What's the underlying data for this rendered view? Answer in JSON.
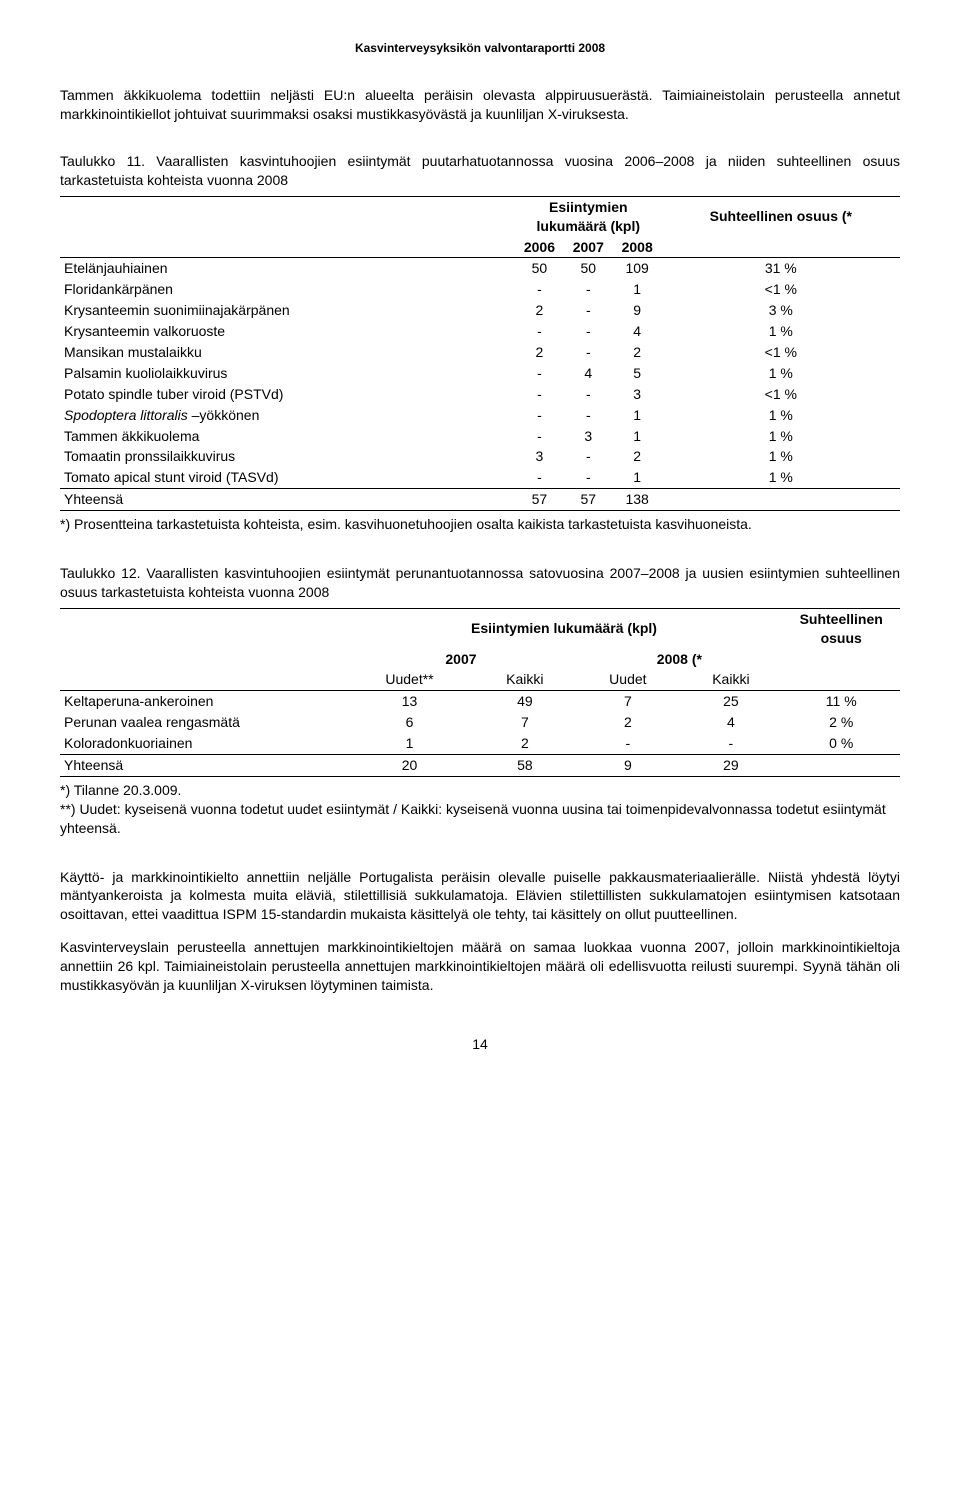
{
  "header": "Kasvinterveysyksikön valvontaraportti 2008",
  "para1": "Tammen äkkikuolema todettiin neljästi EU:n alueelta peräisin olevasta alppiruusuerästä. Taimiaineistolain perusteella annetut markkinointikiellot johtuivat suurimmaksi osaksi mustikkasyövästä ja kuunliljan X-viruksesta.",
  "table1": {
    "caption": "Taulukko 11. Vaarallisten kasvintuhoojien esiintymät puutarhatuotannossa vuosina 2006–2008 ja niiden suhteellinen osuus tarkastetuista kohteista vuonna 2008",
    "col_header_count": "Esiintymien lukumäärä (kpl)",
    "col_header_pct": "Suhteellinen osuus (*",
    "years": [
      "2006",
      "2007",
      "2008"
    ],
    "rows": [
      {
        "label": "Etelänjauhiainen",
        "v": [
          "50",
          "50",
          "109"
        ],
        "pct": "31 %"
      },
      {
        "label": "Floridankärpänen",
        "v": [
          "-",
          "-",
          "1"
        ],
        "pct": "<1 %"
      },
      {
        "label": "Krysanteemin suonimiinajakärpänen",
        "v": [
          "2",
          "-",
          "9"
        ],
        "pct": "3 %"
      },
      {
        "label": "Krysanteemin valkoruoste",
        "v": [
          "-",
          "-",
          "4"
        ],
        "pct": "1 %"
      },
      {
        "label": "Mansikan mustalaikku",
        "v": [
          "2",
          "-",
          "2"
        ],
        "pct": "<1 %"
      },
      {
        "label": "Palsamin kuoliolaikkuvirus",
        "v": [
          "-",
          "4",
          "5"
        ],
        "pct": "1 %"
      },
      {
        "label": "Potato spindle tuber viroid (PSTVd)",
        "v": [
          "-",
          "-",
          "3"
        ],
        "pct": "<1 %"
      },
      {
        "label": "<i>Spodoptera littoralis</i> –yökkönen",
        "v": [
          "-",
          "-",
          "1"
        ],
        "pct": "1 %"
      },
      {
        "label": "Tammen äkkikuolema",
        "v": [
          "-",
          "3",
          "1"
        ],
        "pct": "1 %"
      },
      {
        "label": "Tomaatin pronssilaikkuvirus",
        "v": [
          "3",
          "-",
          "2"
        ],
        "pct": "1 %"
      },
      {
        "label": "Tomato apical stunt viroid (TASVd)",
        "v": [
          "-",
          "-",
          "1"
        ],
        "pct": "1 %"
      }
    ],
    "total": {
      "label": "Yhteensä",
      "v": [
        "57",
        "57",
        "138"
      ],
      "pct": ""
    },
    "footnote": "*) Prosentteina tarkastetuista kohteista, esim. kasvihuonetuhoojien osalta kaikista tarkastetuista kasvihuoneista."
  },
  "table2": {
    "caption": "Taulukko 12. Vaarallisten kasvintuhoojien esiintymät perunantuotannossa satovuosina 2007–2008 ja uusien esiintymien suhteellinen osuus tarkastetuista kohteista vuonna 2008",
    "col_header_count": "Esiintymien lukumäärä (kpl)",
    "col_header_pct": "Suhteellinen osuus",
    "years": [
      "2007",
      "2008 (*"
    ],
    "subheaders": [
      "Uudet**",
      "Kaikki",
      "Uudet",
      "Kaikki"
    ],
    "rows": [
      {
        "label": "Keltaperuna-ankeroinen",
        "v": [
          "13",
          "49",
          "7",
          "25"
        ],
        "pct": "11 %"
      },
      {
        "label": "Perunan vaalea rengasmätä",
        "v": [
          "6",
          "7",
          "2",
          "4"
        ],
        "pct": "2 %"
      },
      {
        "label": "Koloradonkuoriainen",
        "v": [
          "1",
          "2",
          "-",
          "-"
        ],
        "pct": "0 %"
      }
    ],
    "total": {
      "label": "Yhteensä",
      "v": [
        "20",
        "58",
        "9",
        "29"
      ],
      "pct": ""
    },
    "footnote": "*) Tilanne 20.3.009.\n**) Uudet: kyseisenä vuonna todetut uudet esiintymät / Kaikki: kyseisenä vuonna uusina tai toimenpidevalvonnassa todetut esiintymät yhteensä."
  },
  "para2": "Käyttö- ja markkinointikielto annettiin neljälle Portugalista peräisin olevalle puiselle pakkausmateriaalierälle. Niistä yhdestä löytyi mäntyankeroista ja kolmesta muita eläviä, stilettillisiä sukkulamatoja. Elävien stilettillisten sukkulamatojen esiintymisen katsotaan osoittavan, ettei vaadittua ISPM 15-standardin mukaista käsittelyä ole tehty, tai käsittely on ollut puutteellinen.",
  "para3": "Kasvinterveyslain perusteella annettujen markkinointikieltojen määrä on samaa luokkaa vuonna 2007, jolloin markkinointikieltoja annettiin 26 kpl. Taimiaineistolain perusteella annettujen markkinointikieltojen määrä oli edellisvuotta reilusti suurempi. Syynä tähän oli mustikkasyövän ja kuunliljan X-viruksen löytyminen taimista.",
  "page_number": "14"
}
